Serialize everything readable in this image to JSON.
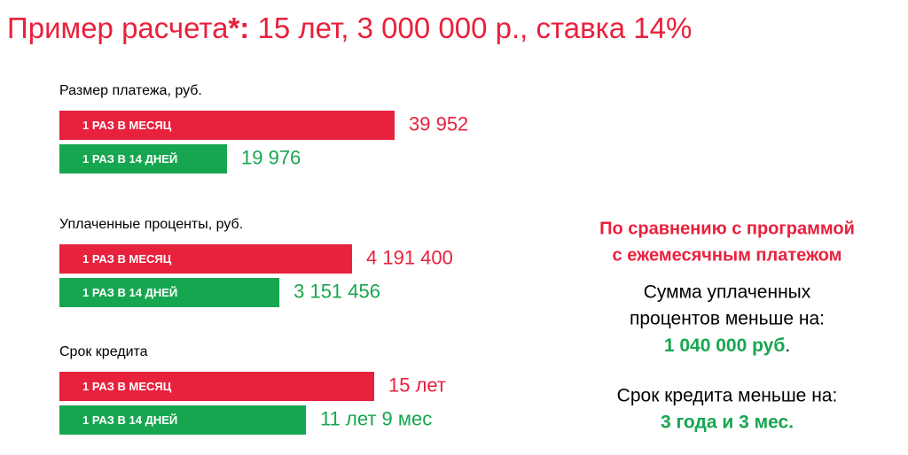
{
  "title_lead": "Пример расчета",
  "title_mark": "*:",
  "title_rest": " 15 лет, 3 000 000 р., ставка 14%",
  "chart_data": [
    {
      "type": "bar",
      "title": "Размер платежа, руб.",
      "categories": [
        "1 РАЗ В МЕСЯЦ",
        "1 РАЗ В 14 ДНЕЙ"
      ],
      "values": [
        39952,
        19976
      ],
      "value_labels": [
        "39 952",
        "19 976"
      ],
      "colors": [
        "#e8213d",
        "#17a650"
      ]
    },
    {
      "type": "bar",
      "title": "Уплаченные проценты, руб.",
      "categories": [
        "1 РАЗ В МЕСЯЦ",
        "1 РАЗ В 14 ДНЕЙ"
      ],
      "values": [
        4191400,
        3151456
      ],
      "value_labels": [
        "4 191 400",
        "3 151 456"
      ],
      "colors": [
        "#e8213d",
        "#17a650"
      ]
    },
    {
      "type": "bar",
      "title": "Срок кредита",
      "categories": [
        "1 РАЗ В МЕСЯЦ",
        "1 РАЗ В 14 ДНЕЙ"
      ],
      "values": [
        15,
        11.75
      ],
      "value_labels": [
        "15 лет",
        "11 лет 9 мес"
      ],
      "colors": [
        "#e8213d",
        "#17a650"
      ]
    }
  ],
  "summary": {
    "heading": [
      "По сравнению с программой",
      "с ежемесячным  платежом"
    ],
    "interest_text": [
      "Сумма уплаченных",
      "процентов меньше на:"
    ],
    "interest_value": "1 040 000 руб",
    "interest_end": ".",
    "term_text": "Срок кредита меньше на:",
    "term_value": "3 года и 3 мес."
  }
}
